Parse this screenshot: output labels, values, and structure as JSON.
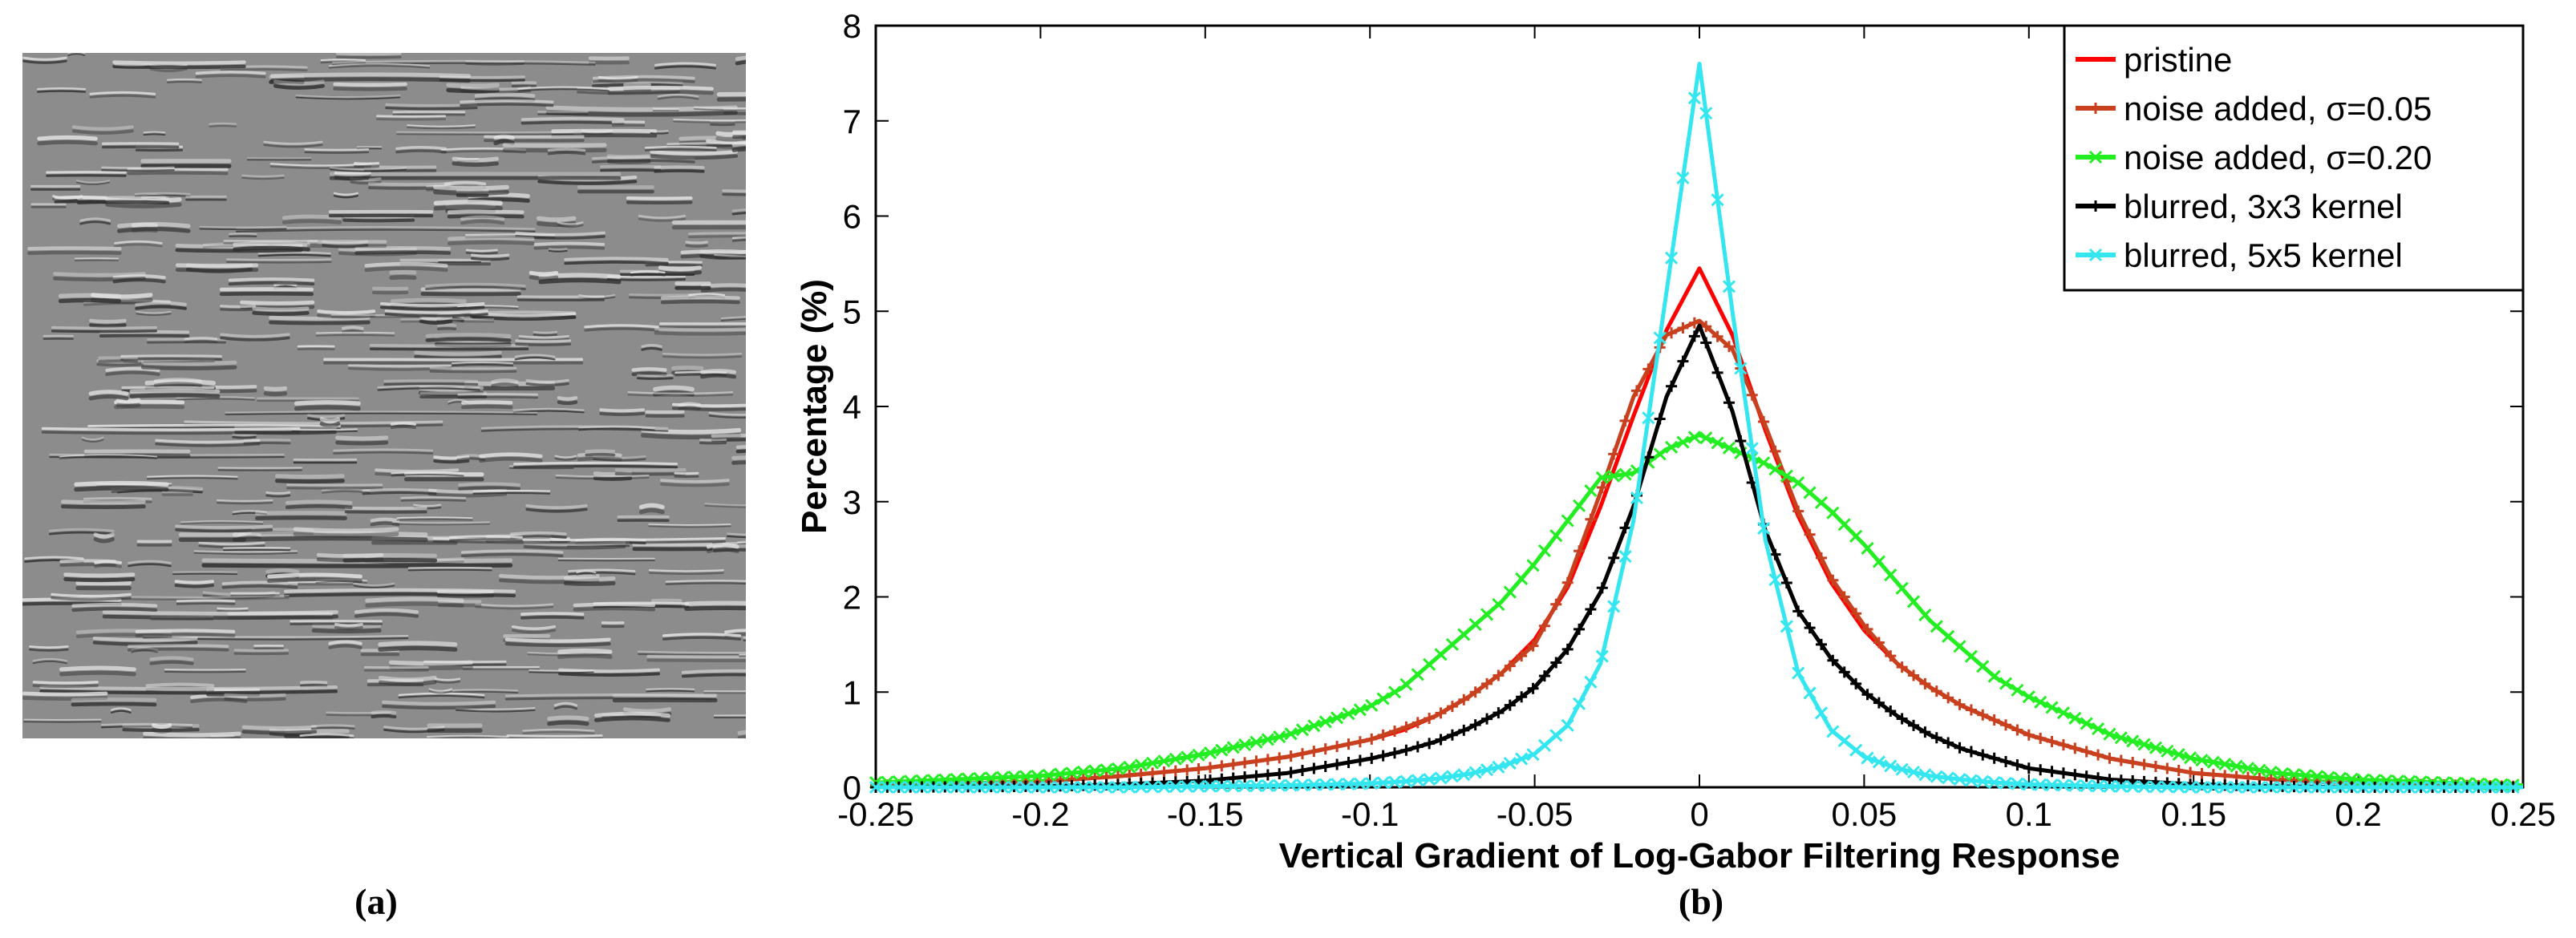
{
  "panel_a": {
    "caption": "(a)",
    "colors": {
      "base": "#8c8c8c",
      "light": "#e4e4e4",
      "dark": "#2f2f2f"
    }
  },
  "panel_b": {
    "caption": "(b)"
  },
  "chart_data": {
    "type": "line",
    "title": "",
    "xlabel": "Vertical Gradient of Log-Gabor Filtering Response",
    "ylabel": "Percentage (%)",
    "xlim": [
      -0.25,
      0.25
    ],
    "ylim": [
      0,
      8
    ],
    "xticks": [
      -0.25,
      -0.2,
      -0.15,
      -0.1,
      -0.05,
      0,
      0.05,
      0.1,
      0.15,
      0.2,
      0.25
    ],
    "xtick_labels": [
      "-0.25",
      "-0.2",
      "-0.15",
      "-0.1",
      "-0.05",
      "0",
      "0.05",
      "0.1",
      "0.15",
      "0.2",
      "0.25"
    ],
    "yticks": [
      0,
      1,
      2,
      3,
      4,
      5,
      6,
      7,
      8
    ],
    "ytick_labels": [
      "0",
      "1",
      "2",
      "3",
      "4",
      "5",
      "6",
      "7",
      "8"
    ],
    "grid": false,
    "legend_position": "top-right",
    "x": [
      -0.25,
      -0.2,
      -0.175,
      -0.15,
      -0.125,
      -0.1,
      -0.09,
      -0.08,
      -0.07,
      -0.06,
      -0.05,
      -0.04,
      -0.03,
      -0.02,
      -0.01,
      0,
      0.01,
      0.02,
      0.03,
      0.04,
      0.05,
      0.06,
      0.07,
      0.08,
      0.09,
      0.1,
      0.125,
      0.15,
      0.175,
      0.2,
      0.25
    ],
    "series": [
      {
        "name": "pristine",
        "color": "#ff0000",
        "marker": "none",
        "values": [
          0.02,
          0.06,
          0.12,
          0.2,
          0.32,
          0.5,
          0.6,
          0.75,
          0.95,
          1.2,
          1.55,
          2.1,
          2.95,
          3.9,
          4.8,
          5.45,
          4.75,
          3.75,
          2.85,
          2.15,
          1.65,
          1.3,
          1.05,
          0.85,
          0.7,
          0.55,
          0.3,
          0.15,
          0.08,
          0.04,
          0.01
        ]
      },
      {
        "name": "noise added, σ=0.05",
        "color": "#c8401e",
        "marker": "plus",
        "values": [
          0.02,
          0.06,
          0.12,
          0.2,
          0.32,
          0.5,
          0.62,
          0.75,
          0.95,
          1.2,
          1.5,
          2.15,
          3.1,
          4.1,
          4.75,
          4.9,
          4.6,
          3.8,
          2.9,
          2.2,
          1.7,
          1.3,
          1.05,
          0.85,
          0.7,
          0.55,
          0.3,
          0.15,
          0.08,
          0.04,
          0.01
        ]
      },
      {
        "name": "noise added, σ=0.20",
        "color": "#22ee22",
        "marker": "x",
        "values": [
          0.05,
          0.12,
          0.2,
          0.35,
          0.55,
          0.85,
          1.05,
          1.35,
          1.65,
          1.95,
          2.35,
          2.8,
          3.25,
          3.3,
          3.55,
          3.7,
          3.55,
          3.4,
          3.2,
          2.9,
          2.55,
          2.15,
          1.75,
          1.45,
          1.15,
          0.95,
          0.55,
          0.3,
          0.15,
          0.08,
          0.02
        ]
      },
      {
        "name": "blurred, 3x3 kernel",
        "color": "#000000",
        "marker": "plus",
        "values": [
          0.0,
          0.01,
          0.03,
          0.07,
          0.15,
          0.3,
          0.38,
          0.48,
          0.62,
          0.8,
          1.05,
          1.45,
          2.05,
          2.95,
          4.1,
          4.85,
          3.95,
          2.7,
          1.85,
          1.35,
          1.0,
          0.75,
          0.55,
          0.4,
          0.3,
          0.2,
          0.08,
          0.03,
          0.01,
          0.0,
          0.0
        ]
      },
      {
        "name": "blurred, 5x5 kernel",
        "color": "#33e6f0",
        "marker": "x",
        "values": [
          0.0,
          0.0,
          0.0,
          0.01,
          0.02,
          0.04,
          0.06,
          0.09,
          0.14,
          0.22,
          0.35,
          0.65,
          1.3,
          2.8,
          5.2,
          7.6,
          5.0,
          2.6,
          1.2,
          0.6,
          0.32,
          0.2,
          0.12,
          0.08,
          0.05,
          0.03,
          0.01,
          0.0,
          0.0,
          0.0,
          0.0
        ]
      }
    ]
  }
}
